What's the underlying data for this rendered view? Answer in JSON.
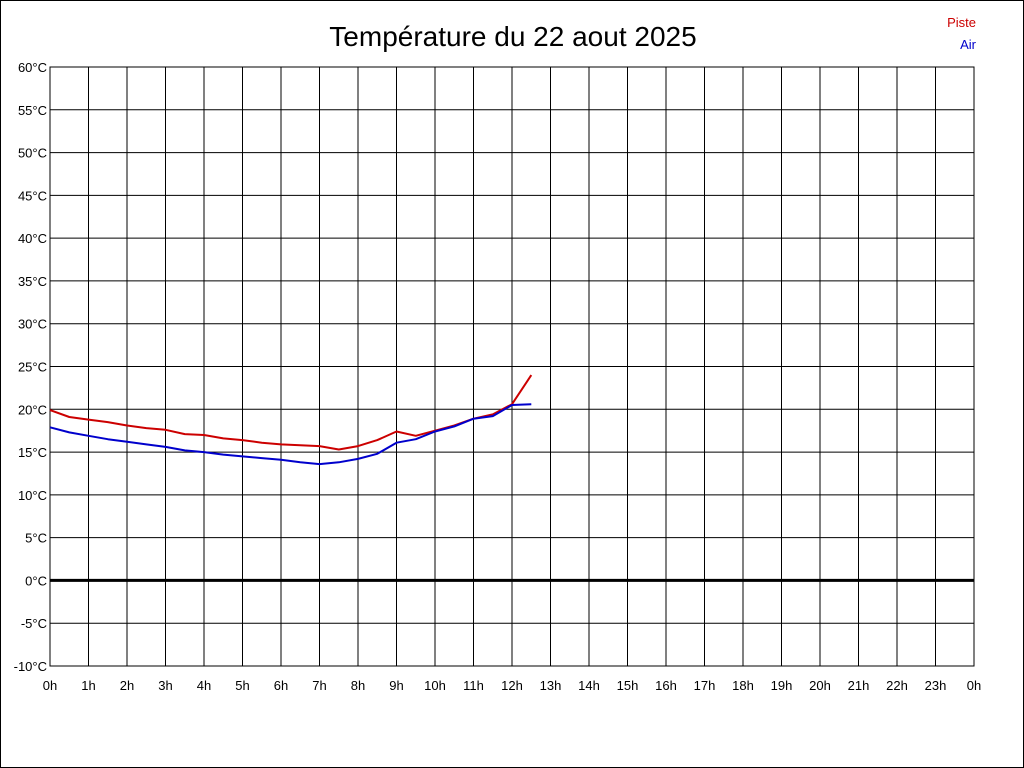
{
  "chart_data": {
    "type": "line",
    "title": "Température du 22 aout 2025",
    "xlabel": "",
    "ylabel": "",
    "xlim": [
      0,
      24
    ],
    "ylim": [
      -10,
      60
    ],
    "grid": true,
    "legend_position": "top-right",
    "x_tick_labels": [
      "0h",
      "1h",
      "2h",
      "3h",
      "4h",
      "5h",
      "6h",
      "7h",
      "8h",
      "9h",
      "10h",
      "11h",
      "12h",
      "13h",
      "14h",
      "15h",
      "16h",
      "17h",
      "18h",
      "19h",
      "20h",
      "21h",
      "22h",
      "23h",
      "0h"
    ],
    "y_tick_labels": [
      "60°C",
      "55°C",
      "50°C",
      "45°C",
      "40°C",
      "35°C",
      "30°C",
      "25°C",
      "20°C",
      "15°C",
      "10°C",
      "5°C",
      "0°C",
      "-5°C",
      "-10°C"
    ],
    "y_tick_values": [
      60,
      55,
      50,
      45,
      40,
      35,
      30,
      25,
      20,
      15,
      10,
      5,
      0,
      -5,
      -10
    ],
    "zero_line": 0,
    "series": [
      {
        "name": "Piste",
        "color": "#cc0000",
        "x": [
          0,
          0.5,
          1,
          1.5,
          2,
          2.5,
          3,
          3.5,
          4,
          4.5,
          5,
          5.5,
          6,
          6.5,
          7,
          7.5,
          8,
          8.5,
          9,
          9.5,
          10,
          10.5,
          11,
          11.5,
          12,
          12.5
        ],
        "values": [
          19.9,
          19.1,
          18.8,
          18.5,
          18.1,
          17.8,
          17.6,
          17.1,
          17.0,
          16.6,
          16.4,
          16.1,
          15.9,
          15.8,
          15.7,
          15.3,
          15.7,
          16.4,
          17.4,
          16.9,
          17.5,
          18.1,
          18.9,
          19.4,
          20.6,
          24.0
        ]
      },
      {
        "name": "Air",
        "color": "#0000cc",
        "x": [
          0,
          0.5,
          1,
          1.5,
          2,
          2.5,
          3,
          3.5,
          4,
          4.5,
          5,
          5.5,
          6,
          6.5,
          7,
          7.5,
          8,
          8.5,
          9,
          9.5,
          10,
          10.5,
          11,
          11.5,
          12,
          12.5
        ],
        "values": [
          17.9,
          17.3,
          16.9,
          16.5,
          16.2,
          15.9,
          15.6,
          15.2,
          15.0,
          14.7,
          14.5,
          14.3,
          14.1,
          13.8,
          13.6,
          13.8,
          14.2,
          14.8,
          16.1,
          16.5,
          17.4,
          18.0,
          18.9,
          19.2,
          20.5,
          20.6
        ]
      }
    ]
  }
}
